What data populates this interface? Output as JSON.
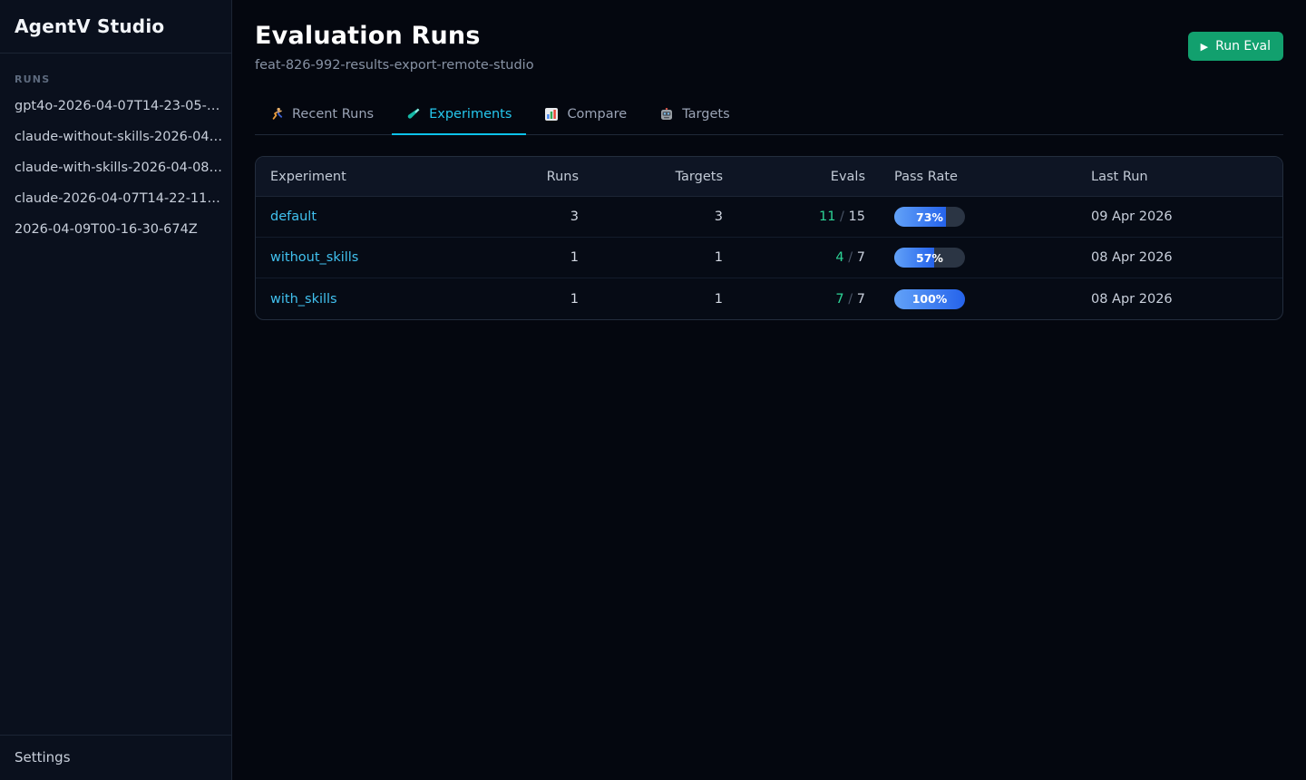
{
  "app": {
    "title": "AgentV Studio"
  },
  "sidebar": {
    "section_label": "RUNS",
    "items": [
      {
        "label": "gpt4o-2026-04-07T14-23-05-…"
      },
      {
        "label": "claude-without-skills-2026-04…"
      },
      {
        "label": "claude-with-skills-2026-04-08…"
      },
      {
        "label": "claude-2026-04-07T14-22-11…"
      },
      {
        "label": "2026-04-09T00-16-30-674Z"
      }
    ],
    "settings_label": "Settings"
  },
  "header": {
    "title": "Evaluation Runs",
    "subtitle": "feat-826-992-results-export-remote-studio",
    "run_eval": {
      "icon": "▶",
      "label": "Run Eval"
    }
  },
  "tabs": [
    {
      "label": "Recent Runs",
      "icon": "runner-icon",
      "active": false
    },
    {
      "label": "Experiments",
      "icon": "test-tube-icon",
      "active": true
    },
    {
      "label": "Compare",
      "icon": "bar-chart-icon",
      "active": false
    },
    {
      "label": "Targets",
      "icon": "robot-icon",
      "active": false
    }
  ],
  "table": {
    "columns": [
      "Experiment",
      "Runs",
      "Targets",
      "Evals",
      "Pass Rate",
      "Last Run"
    ],
    "rows": [
      {
        "experiment": "default",
        "runs": "3",
        "targets": "3",
        "evals_passed": "11",
        "evals_sep": "/",
        "evals_total": "15",
        "pass_rate_pct": 73,
        "pass_rate_label": "73%",
        "last_run": "09 Apr 2026"
      },
      {
        "experiment": "without_skills",
        "runs": "1",
        "targets": "1",
        "evals_passed": "4",
        "evals_sep": "/",
        "evals_total": "7",
        "pass_rate_pct": 57,
        "pass_rate_label": "57%",
        "last_run": "08 Apr 2026"
      },
      {
        "experiment": "with_skills",
        "runs": "1",
        "targets": "1",
        "evals_passed": "7",
        "evals_sep": "/",
        "evals_total": "7",
        "pass_rate_pct": 100,
        "pass_rate_label": "100%",
        "last_run": "08 Apr 2026"
      }
    ]
  },
  "colors": {
    "accent_cyan": "#25c7ee",
    "link_cyan": "#41c1ef",
    "pass_green": "#2dd496",
    "run_eval_green": "#12a06e",
    "pill_fill_start": "#62a2f8",
    "pill_fill_end": "#2563eb",
    "pill_track": "#2b3544",
    "sidebar_bg": "#0a101d",
    "page_bg": "#04070f"
  }
}
